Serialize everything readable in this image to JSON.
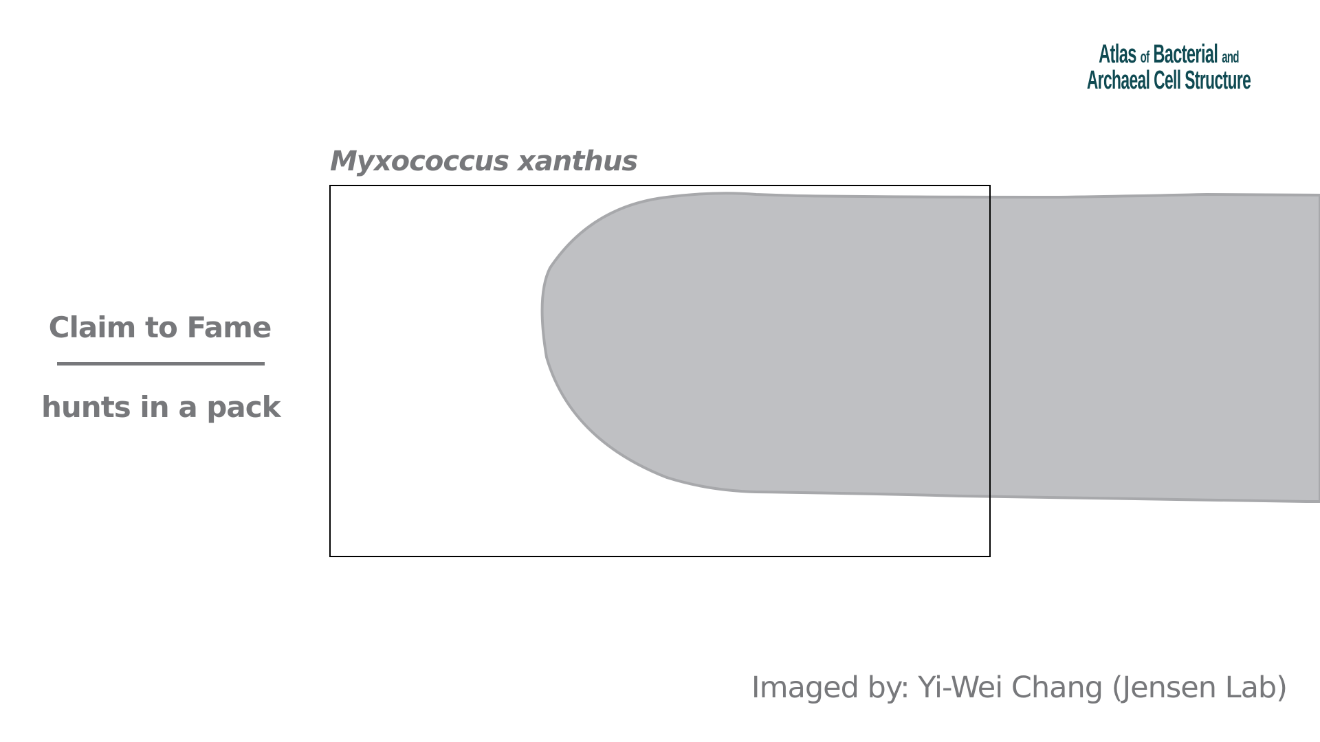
{
  "logo": {
    "line1_a": "Atlas",
    "line1_of": "of",
    "line1_b": "Bacterial",
    "line1_and": "and",
    "line2_a": "Archaeal",
    "line2_b": "Cell",
    "line2_c": "Structure"
  },
  "species": "Myxococcus xanthus",
  "claim": {
    "heading": "Claim to Fame",
    "text": "hunts in a pack"
  },
  "credit": "Imaged by: Yi-Wei Chang (Jensen Lab)",
  "colors": {
    "cell_fill": "#bfc0c3",
    "cell_stroke": "#a7a8ab",
    "text_gray": "#77787b",
    "logo_teal": "#0f4a52",
    "frame": "#000000"
  }
}
